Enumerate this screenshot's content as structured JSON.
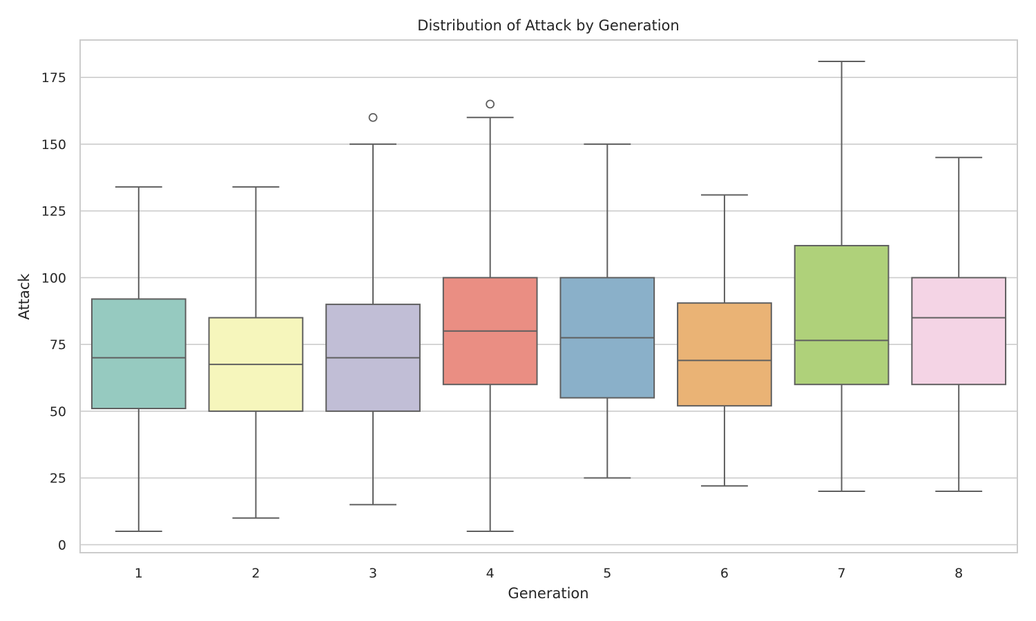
{
  "chart_data": {
    "type": "box",
    "title": "Distribution of Attack by Generation",
    "xlabel": "Generation",
    "ylabel": "Attack",
    "ylim": [
      -3,
      189
    ],
    "yticks": [
      0,
      25,
      50,
      75,
      100,
      125,
      150,
      175
    ],
    "grid": true,
    "categories": [
      "1",
      "2",
      "3",
      "4",
      "5",
      "6",
      "7",
      "8"
    ],
    "boxes": [
      {
        "category": "1",
        "whisker_low": 5,
        "q1": 51,
        "median": 70,
        "q3": 92,
        "whisker_high": 134,
        "outliers": [],
        "color": "#96CAC0"
      },
      {
        "category": "2",
        "whisker_low": 10,
        "q1": 50,
        "median": 67.5,
        "q3": 85,
        "whisker_high": 134,
        "outliers": [],
        "color": "#F6F6BC"
      },
      {
        "category": "3",
        "whisker_low": 15,
        "q1": 50,
        "median": 70,
        "q3": 90,
        "whisker_high": 150,
        "outliers": [
          160
        ],
        "color": "#C1BED6"
      },
      {
        "category": "4",
        "whisker_low": 5,
        "q1": 60,
        "median": 80,
        "q3": 100,
        "whisker_high": 160,
        "outliers": [
          165
        ],
        "color": "#EA8E83"
      },
      {
        "category": "5",
        "whisker_low": 25,
        "q1": 55,
        "median": 77.5,
        "q3": 100,
        "whisker_high": 150,
        "outliers": [],
        "color": "#8AB0C9"
      },
      {
        "category": "6",
        "whisker_low": 22,
        "q1": 52,
        "median": 69,
        "q3": 90.5,
        "whisker_high": 131,
        "outliers": [],
        "color": "#EAB375"
      },
      {
        "category": "7",
        "whisker_low": 20,
        "q1": 60,
        "median": 76.5,
        "q3": 112,
        "whisker_high": 181,
        "outliers": [],
        "color": "#AFD17A"
      },
      {
        "category": "8",
        "whisker_low": 20,
        "q1": 60,
        "median": 85,
        "q3": 100,
        "whisker_high": 145,
        "outliers": [],
        "color": "#F4D4E5"
      }
    ]
  }
}
